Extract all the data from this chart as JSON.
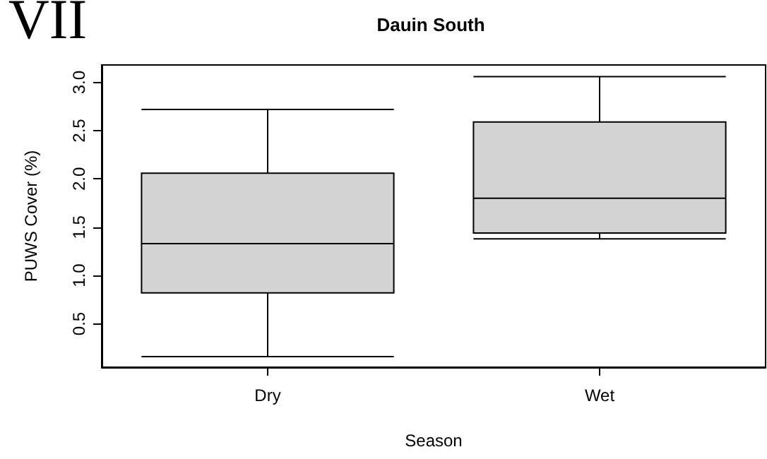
{
  "chart_data": {
    "type": "box",
    "title": "Dauin South",
    "xlabel": "Season",
    "ylabel": "PUWS Cover (%)",
    "annotations": [
      "VII"
    ],
    "categories": [
      "Dry",
      "Wet"
    ],
    "series": [
      {
        "color": "#d3d3d3",
        "boxes": [
          {
            "low": 0.16,
            "q1": 0.82,
            "median": 1.33,
            "q3": 2.06,
            "high": 2.72
          },
          {
            "low": 1.38,
            "q1": 1.44,
            "median": 1.8,
            "q3": 2.59,
            "high": 3.06
          }
        ]
      }
    ],
    "ylim": [
      0.05,
      3.18
    ],
    "yticks": [
      0.5,
      {
        "value": 1,
        "label": "1.0"
      },
      1.5,
      {
        "value": 2,
        "label": "2.0"
      },
      2.5,
      {
        "value": 3,
        "label": "3.0"
      }
    ],
    "grid": false
  }
}
